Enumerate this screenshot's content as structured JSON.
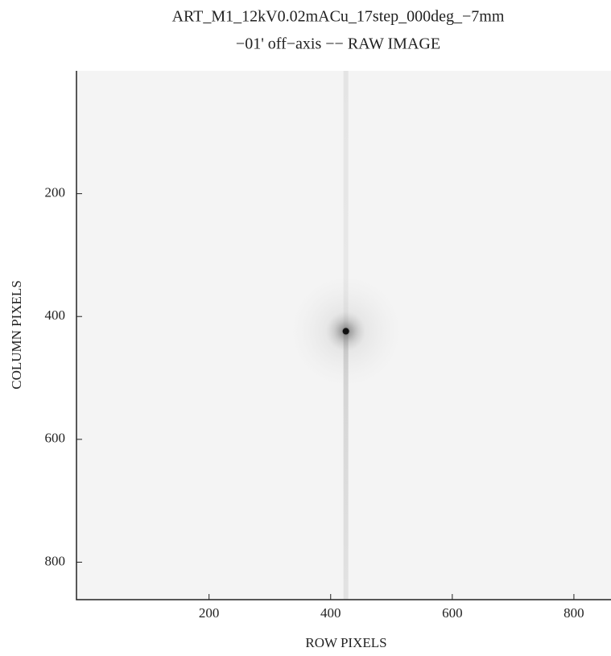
{
  "chart_data": {
    "type": "image",
    "title": [
      "ART_M1_12kV0.02mACu_17step_000deg_−7mm",
      "−01' off−axis −− RAW IMAGE"
    ],
    "xlabel": "ROW PIXELS",
    "ylabel": "COLUMN PIXELS",
    "xlim": [
      -18,
      861
    ],
    "ylim": [
      0,
      861
    ],
    "y_inverted": true,
    "xticks": [
      200,
      400,
      600,
      800
    ],
    "yticks": [
      200,
      400,
      600,
      800
    ],
    "background_color": "#f4f4f4",
    "color": "#111111",
    "peak": {
      "x": 425,
      "y": 424
    }
  }
}
